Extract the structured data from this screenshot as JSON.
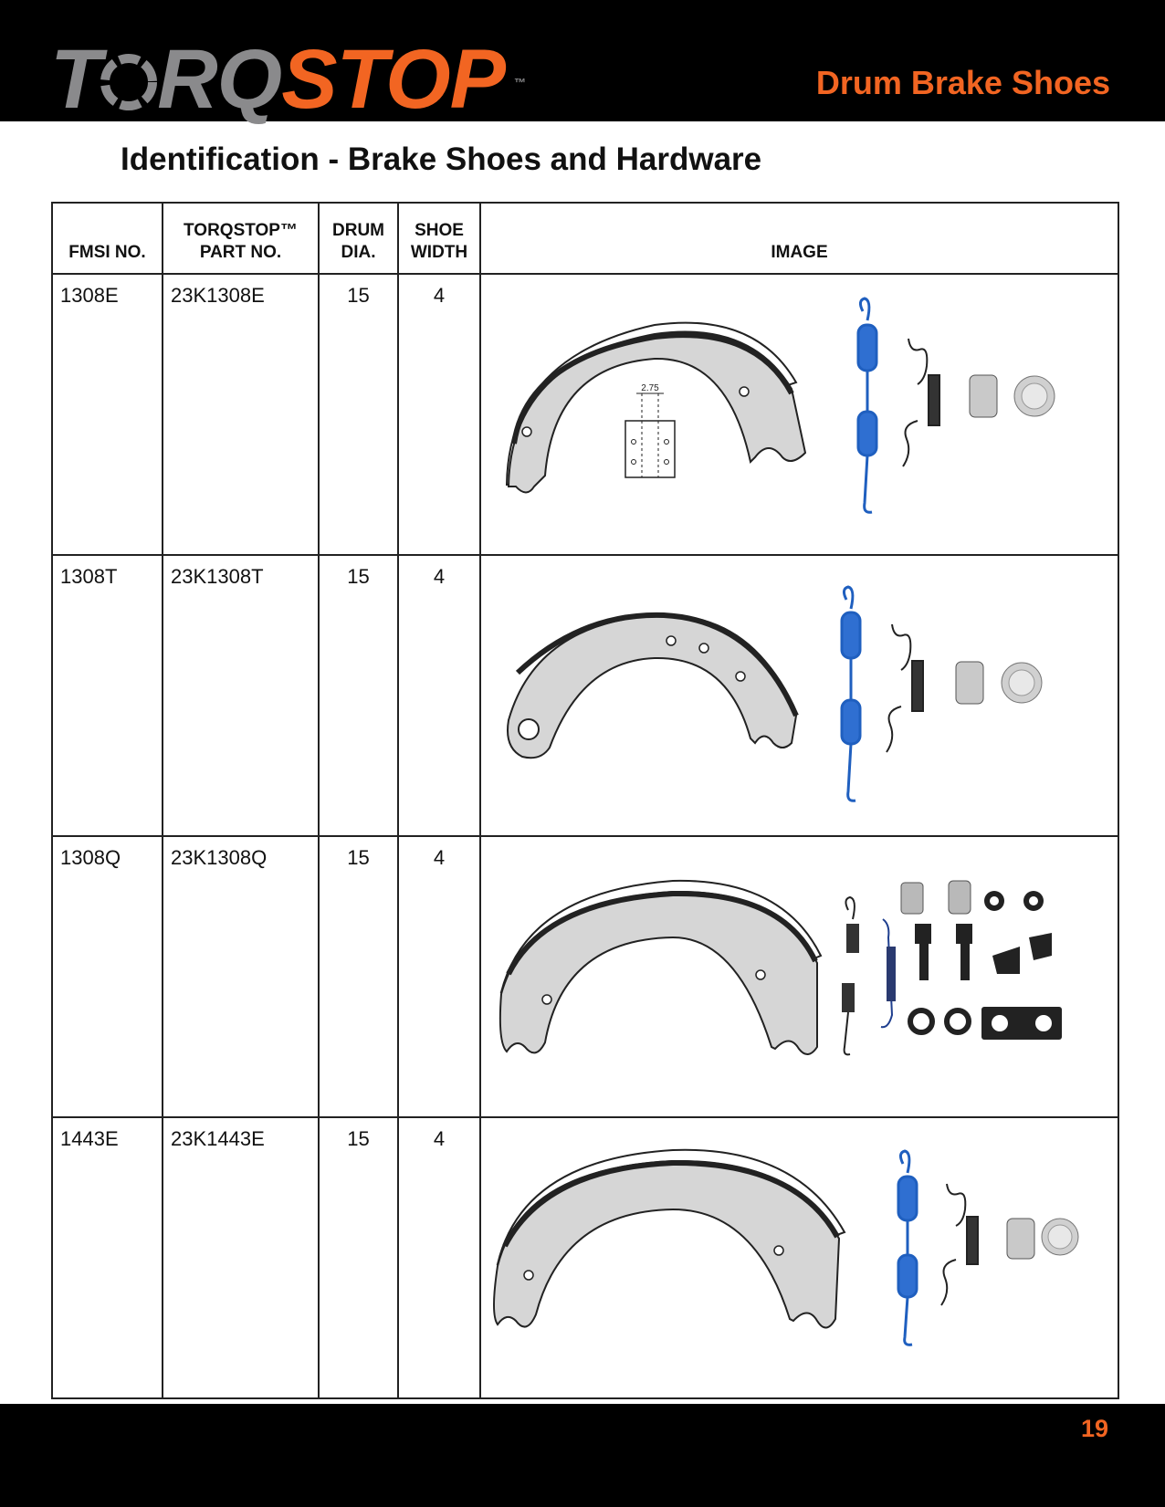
{
  "header": {
    "logo_left": "T",
    "logo_mid": "RQ",
    "logo_right": "STOP",
    "logo_tm": "™",
    "section_title": "Drum Brake Shoes"
  },
  "page_heading": "Identification - Brake Shoes and Hardware",
  "table": {
    "headers": {
      "fmsi": "FMSI NO.",
      "part_line1": "TORQSTOP™",
      "part_line2": "PART NO.",
      "drum_line1": "DRUM",
      "drum_line2": "DIA.",
      "shoe_line1": "SHOE",
      "shoe_line2": "WIDTH",
      "image": "IMAGE"
    },
    "rows": [
      {
        "fmsi": "1308E",
        "part": "23K1308E",
        "drum": "15",
        "width": "4",
        "dimension": "2.75"
      },
      {
        "fmsi": "1308T",
        "part": "23K1308T",
        "drum": "15",
        "width": "4"
      },
      {
        "fmsi": "1308Q",
        "part": "23K1308Q",
        "drum": "15",
        "width": "4"
      },
      {
        "fmsi": "1443E",
        "part": "23K1443E",
        "drum": "15",
        "width": "4"
      }
    ]
  },
  "footer": {
    "page_number": "19"
  },
  "colors": {
    "accent": "#f26522",
    "spring_blue": "#1f5fbf",
    "shoe_grey": "#d6d6d6"
  }
}
